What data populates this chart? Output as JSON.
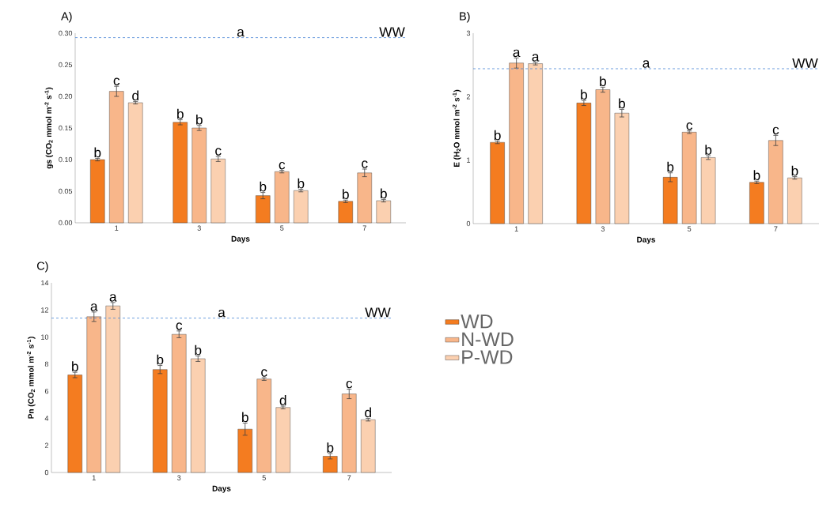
{
  "chart_data": [
    {
      "type": "bar",
      "title": "A)",
      "xlabel": "Days",
      "ylabel": "gs (CO$_{2}$ mmol m$^{-2}$ s$^{-1}$)",
      "categories": [
        "1",
        "3",
        "5",
        "7"
      ],
      "series": [
        {
          "color": "#f47c20",
          "values": [
            0.1,
            0.159,
            0.043,
            0.034
          ],
          "errors": [
            0.002,
            0.004,
            0.005,
            0.002
          ],
          "value_labels": [
            "b",
            "b",
            "b",
            "b"
          ]
        },
        {
          "color": "#f8b68a",
          "values": [
            0.208,
            0.15,
            0.081,
            0.079
          ],
          "errors": [
            0.008,
            0.004,
            0.002,
            0.006
          ],
          "value_labels": [
            "c",
            "b",
            "c",
            "c"
          ]
        },
        {
          "color": "#fbd0b0",
          "values": [
            0.19,
            0.101,
            0.051,
            0.035
          ],
          "errors": [
            0.002,
            0.004,
            0.002,
            0.002
          ],
          "value_labels": [
            "d",
            "c",
            "b",
            "b"
          ]
        }
      ],
      "ylim": [
        0,
        0.3
      ],
      "yticks": [
        {
          "value": 0,
          "label": "0.00"
        },
        {
          "value": 0.05,
          "label": "0.05"
        },
        {
          "value": 0.1,
          "label": "0.10"
        },
        {
          "value": 0.15,
          "label": "0.15"
        },
        {
          "value": 0.2,
          "label": "0.20"
        },
        {
          "value": 0.25,
          "label": "0.25"
        },
        {
          "value": 0.3,
          "label": "0.30"
        }
      ],
      "ref_lines": [
        {
          "axis": "y",
          "value": 0.293,
          "label": "WW",
          "color": "#4a86d6",
          "line_style": "dashed"
        }
      ],
      "annotations": [
        {
          "text": "a",
          "y": 0.293
        }
      ],
      "grid": false,
      "legend": false
    },
    {
      "type": "bar",
      "title": "B)",
      "xlabel": "Days",
      "ylabel": "E (H$_{2}$O mmol m$^{-2}$ s$^{-1}$)",
      "categories": [
        "1",
        "3",
        "5",
        "7"
      ],
      "series": [
        {
          "color": "#f47c20",
          "values": [
            1.28,
            1.9,
            0.73,
            0.65
          ],
          "errors": [
            0.02,
            0.04,
            0.07,
            0.02
          ],
          "value_labels": [
            "b",
            "b",
            "b",
            "b"
          ]
        },
        {
          "color": "#f8b68a",
          "values": [
            2.53,
            2.11,
            1.44,
            1.31
          ],
          "errors": [
            0.08,
            0.04,
            0.02,
            0.08
          ],
          "value_labels": [
            "a",
            "b",
            "c",
            "c"
          ]
        },
        {
          "color": "#fbd0b0",
          "values": [
            2.52,
            1.74,
            1.04,
            0.72
          ],
          "errors": [
            0.02,
            0.06,
            0.03,
            0.02
          ],
          "value_labels": [
            "a",
            "b",
            "b",
            "b"
          ]
        }
      ],
      "ylim": [
        0,
        3
      ],
      "yticks": [
        0,
        1,
        2,
        3
      ],
      "ref_lines": [
        {
          "axis": "y",
          "value": 2.44,
          "label": "WW",
          "color": "#4a86d6",
          "line_style": "dashed"
        }
      ],
      "annotations": [
        {
          "text": "a",
          "y": 2.44
        }
      ],
      "grid": false,
      "legend": false
    },
    {
      "type": "bar",
      "title": "C)",
      "xlabel": "Days",
      "ylabel": "Pn (CO$_{2}$ mmol m$^{-2}$ s$^{-1}$)",
      "categories": [
        "1",
        "3",
        "5",
        "7"
      ],
      "series": [
        {
          "name": "WD",
          "color": "#f47c20",
          "values": [
            7.2,
            7.6,
            3.2,
            1.2
          ],
          "errors": [
            0.2,
            0.3,
            0.45,
            0.2
          ],
          "value_labels": [
            "b",
            "b",
            "b",
            "b"
          ]
        },
        {
          "name": "N-WD",
          "color": "#f8b68a",
          "values": [
            11.5,
            10.2,
            6.9,
            5.8
          ],
          "errors": [
            0.35,
            0.25,
            0.1,
            0.35
          ],
          "value_labels": [
            "a",
            "c",
            "c",
            "c"
          ]
        },
        {
          "name": "P-WD",
          "color": "#fbd0b0",
          "values": [
            12.3,
            8.4,
            4.8,
            3.9
          ],
          "errors": [
            0.25,
            0.2,
            0.1,
            0.1
          ],
          "value_labels": [
            "a",
            "b",
            "d",
            "d"
          ]
        }
      ],
      "ylim": [
        0,
        14
      ],
      "yticks": [
        0,
        2,
        4,
        6,
        8,
        10,
        12,
        14
      ],
      "ref_lines": [
        {
          "axis": "y",
          "value": 11.4,
          "label": "WW",
          "color": "#4a86d6",
          "line_style": "dashed"
        }
      ],
      "annotations": [
        {
          "text": "a",
          "y": 11.4
        }
      ],
      "grid": false,
      "legend": "right"
    }
  ]
}
